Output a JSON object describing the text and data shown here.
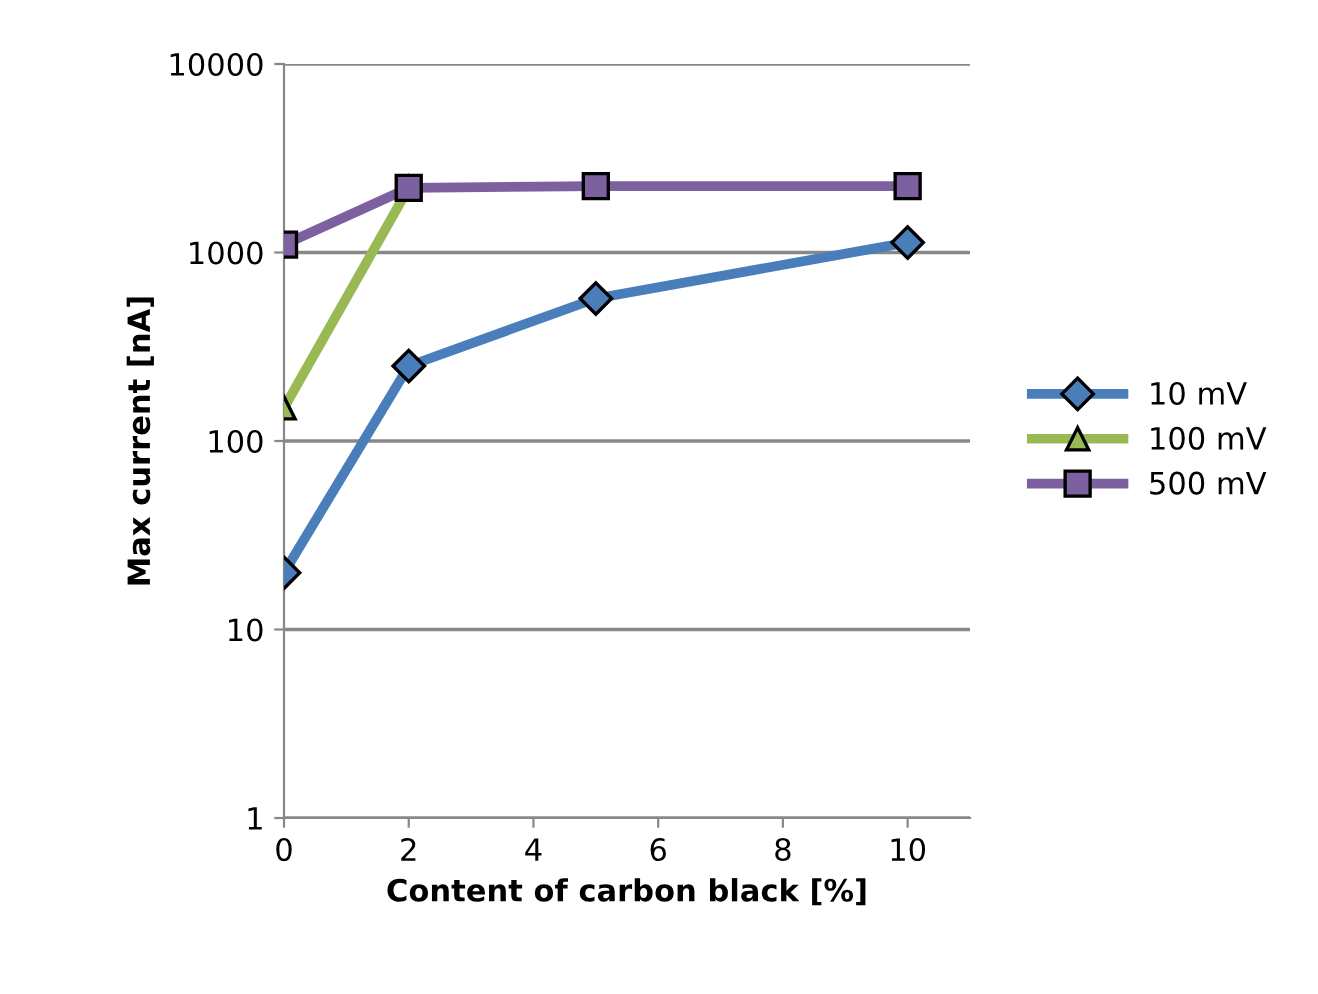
{
  "chart_data": {
    "type": "line",
    "xlabel": "Content of carbon black [%]",
    "ylabel": "Max current [nA]",
    "x": [
      0,
      2,
      5,
      10
    ],
    "xlim": [
      0,
      11
    ],
    "xticks": [
      0,
      2,
      4,
      6,
      8,
      10
    ],
    "log": true,
    "ylim": [
      1,
      10000
    ],
    "yticks": [
      1,
      10,
      100,
      1000,
      10000
    ],
    "grid": "y",
    "legend": "right",
    "series": [
      {
        "name": "10 mV",
        "color": "#4a7ebb",
        "marker": "diamond",
        "values": [
          20,
          250,
          570,
          1130
        ]
      },
      {
        "name": "100 mV",
        "color": "#98b954",
        "marker": "triangle",
        "values": [
          150,
          2200,
          null,
          null
        ]
      },
      {
        "name": "500 mV",
        "color": "#7d60a0",
        "marker": "square",
        "values": [
          1100,
          2200,
          2250,
          2250
        ]
      }
    ]
  }
}
